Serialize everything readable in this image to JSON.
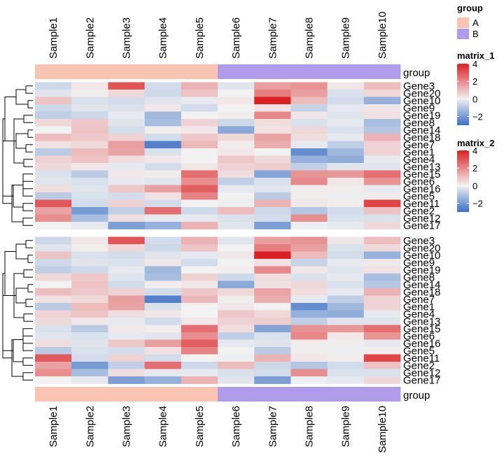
{
  "chart_data": {
    "type": "heatmap",
    "samples": [
      "Sample1",
      "Sample2",
      "Sample3",
      "Sample4",
      "Sample5",
      "Sample6",
      "Sample7",
      "Sample8",
      "Sample9",
      "Sample10"
    ],
    "groups": [
      "A",
      "A",
      "A",
      "A",
      "A",
      "B",
      "B",
      "B",
      "B",
      "B"
    ],
    "group_annotation_label": "group",
    "legends": {
      "group": {
        "title": "group",
        "levels": [
          "A",
          "B"
        ],
        "colors": {
          "A": "#F9C4B1",
          "B": "#B19CEB"
        }
      },
      "matrix_1": {
        "title": "matrix_1",
        "ticks": [
          4,
          2,
          0,
          -2
        ]
      },
      "matrix_2": {
        "title": "matrix_2",
        "ticks": [
          4,
          2,
          0,
          -2
        ]
      }
    },
    "color_scale": {
      "min": -3,
      "mid": 0,
      "max": 4,
      "low": "#3A6FC4",
      "mid_color": "#F2F2F2",
      "high": "#DC1F22"
    },
    "heatmaps": [
      {
        "name": "matrix_1",
        "genes": [
          "Gene3",
          "Gene20",
          "Gene10",
          "Gene9",
          "Gene19",
          "Gene8",
          "Gene14",
          "Gene18",
          "Gene7",
          "Gene1",
          "Gene4",
          "Gene13",
          "Gene15",
          "Gene6",
          "Gene16",
          "Gene5",
          "Gene11",
          "Gene2",
          "Gene12",
          "Gene17"
        ],
        "values": [
          [
            -0.6,
            0.2,
            3.0,
            -0.5,
            1.2,
            -0.3,
            1.6,
            1.8,
            0.2,
            1.0
          ],
          [
            -0.3,
            0.1,
            0.5,
            -0.6,
            0.9,
            0.0,
            2.2,
            1.6,
            -0.4,
            0.5
          ],
          [
            0.9,
            -0.4,
            -0.5,
            -0.3,
            -0.2,
            0.2,
            4.0,
            1.0,
            -0.5,
            -1.5
          ],
          [
            -0.6,
            -0.3,
            -0.4,
            0.2,
            -0.5,
            0.0,
            0.3,
            -0.7,
            -0.2,
            0.2
          ],
          [
            -0.8,
            -0.6,
            -0.2,
            -1.3,
            0.0,
            0.1,
            2.0,
            0.2,
            -0.3,
            0.3
          ],
          [
            0.5,
            0.8,
            -0.3,
            -1.2,
            0.6,
            -0.6,
            0.4,
            -0.4,
            -0.2,
            -1.2
          ],
          [
            0.0,
            0.9,
            -0.5,
            0.1,
            0.2,
            -1.7,
            0.3,
            0.5,
            -0.4,
            -1.0
          ],
          [
            1.0,
            0.8,
            0.6,
            -0.5,
            0.8,
            0.5,
            1.5,
            0.4,
            -0.2,
            1.2
          ],
          [
            0.3,
            0.5,
            1.6,
            -2.6,
            1.1,
            0.1,
            1.3,
            -0.2,
            -0.8,
            0.6
          ],
          [
            -0.9,
            1.0,
            1.5,
            -0.4,
            0.0,
            0.2,
            0.0,
            -2.3,
            -1.3,
            0.6
          ],
          [
            0.6,
            0.9,
            0.4,
            0.2,
            0.0,
            0.8,
            0.5,
            -1.5,
            -1.6,
            -0.2
          ],
          [
            0.5,
            0.2,
            -0.2,
            -0.5,
            0.2,
            0.6,
            0.7,
            -0.8,
            -0.3,
            -0.3
          ],
          [
            -0.4,
            -0.9,
            0.2,
            0.1,
            2.5,
            0.4,
            -1.8,
            1.8,
            1.7,
            2.5
          ],
          [
            -0.3,
            -0.4,
            -0.2,
            -0.3,
            1.9,
            -0.8,
            -0.4,
            2.0,
            0.2,
            1.8
          ],
          [
            0.4,
            -0.3,
            0.8,
            1.6,
            2.8,
            -0.2,
            -0.3,
            0.1,
            0.1,
            -0.2
          ],
          [
            -0.9,
            -0.4,
            -0.5,
            0.3,
            2.1,
            0.0,
            -0.9,
            0.1,
            -0.1,
            0.1
          ],
          [
            2.9,
            -0.5,
            0.6,
            -0.5,
            0.0,
            -0.1,
            1.2,
            0.2,
            0.1,
            3.3
          ],
          [
            1.5,
            -2.0,
            -0.8,
            2.5,
            -0.6,
            1.0,
            -0.6,
            -1.0,
            -0.5,
            0.9
          ],
          [
            1.9,
            -1.2,
            0.4,
            -0.2,
            -0.2,
            -0.4,
            -0.5,
            1.9,
            -0.4,
            -0.4
          ],
          [
            0.0,
            -0.2,
            -1.9,
            -1.5,
            1.2,
            -0.3,
            -1.9,
            -0.1,
            -0.2,
            0.5
          ]
        ]
      },
      {
        "name": "matrix_2",
        "genes": [
          "Gene3",
          "Gene20",
          "Gene10",
          "Gene9",
          "Gene19",
          "Gene8",
          "Gene14",
          "Gene18",
          "Gene7",
          "Gene1",
          "Gene4",
          "Gene13",
          "Gene15",
          "Gene6",
          "Gene16",
          "Gene5",
          "Gene11",
          "Gene2",
          "Gene12",
          "Gene17"
        ],
        "values": [
          [
            -0.6,
            0.2,
            3.0,
            -0.5,
            1.2,
            -0.3,
            1.6,
            1.8,
            0.2,
            1.0
          ],
          [
            -0.3,
            0.1,
            0.5,
            -0.6,
            0.9,
            0.0,
            2.2,
            1.6,
            -0.4,
            0.5
          ],
          [
            0.9,
            -0.4,
            -0.5,
            -0.3,
            -0.2,
            0.2,
            4.0,
            1.0,
            -0.5,
            -1.5
          ],
          [
            -0.6,
            -0.3,
            -0.4,
            0.2,
            -0.5,
            0.0,
            0.3,
            -0.7,
            -0.2,
            0.2
          ],
          [
            -0.8,
            -0.6,
            -0.2,
            -1.3,
            0.0,
            0.1,
            2.0,
            0.2,
            -0.3,
            0.3
          ],
          [
            0.5,
            0.8,
            -0.3,
            -1.2,
            0.6,
            -0.6,
            0.4,
            -0.4,
            -0.2,
            -1.2
          ],
          [
            0.0,
            0.9,
            -0.5,
            0.1,
            0.2,
            -1.7,
            0.3,
            0.5,
            -0.4,
            -1.0
          ],
          [
            1.0,
            0.8,
            0.6,
            -0.5,
            0.8,
            0.5,
            1.5,
            0.4,
            -0.2,
            1.2
          ],
          [
            0.3,
            0.5,
            1.6,
            -2.6,
            1.1,
            0.1,
            1.3,
            -0.2,
            -0.8,
            0.6
          ],
          [
            -0.9,
            1.0,
            1.5,
            -0.4,
            0.0,
            0.2,
            0.0,
            -2.3,
            -1.3,
            0.6
          ],
          [
            0.6,
            0.9,
            0.4,
            0.2,
            0.0,
            0.8,
            0.5,
            -1.5,
            -1.6,
            -0.2
          ],
          [
            0.5,
            0.2,
            -0.2,
            -0.5,
            0.2,
            0.6,
            0.7,
            -0.8,
            -0.3,
            -0.3
          ],
          [
            -0.4,
            -0.9,
            0.2,
            0.1,
            2.5,
            0.4,
            -1.8,
            1.8,
            1.7,
            2.5
          ],
          [
            -0.3,
            -0.4,
            -0.2,
            -0.3,
            1.9,
            -0.8,
            -0.4,
            2.0,
            0.2,
            1.8
          ],
          [
            0.4,
            -0.3,
            0.8,
            1.6,
            2.8,
            -0.2,
            -0.3,
            0.1,
            0.1,
            -0.2
          ],
          [
            -0.9,
            -0.4,
            -0.5,
            0.3,
            2.1,
            0.0,
            -0.9,
            0.1,
            -0.1,
            0.1
          ],
          [
            2.9,
            -0.5,
            0.6,
            -0.5,
            0.0,
            -0.1,
            1.2,
            0.2,
            0.1,
            3.3
          ],
          [
            1.5,
            -2.0,
            -0.8,
            2.5,
            -0.6,
            1.0,
            -0.6,
            -1.0,
            -0.5,
            0.9
          ],
          [
            1.9,
            -1.2,
            0.4,
            -0.2,
            -0.2,
            -0.4,
            -0.5,
            1.9,
            -0.4,
            -0.4
          ],
          [
            0.0,
            -0.2,
            -1.9,
            -1.5,
            1.2,
            -0.3,
            -1.9,
            -0.1,
            -0.2,
            0.5
          ]
        ]
      }
    ],
    "row_dendrogram": [
      [
        6,
        7
      ],
      [
        8,
        9
      ],
      [
        4,
        5
      ],
      [
        2,
        3
      ],
      [
        0,
        1
      ],
      [
        10,
        11
      ],
      [
        13,
        14
      ],
      [
        12,
        15
      ],
      [
        16,
        17
      ],
      [
        18,
        19
      ],
      [
        20,
        21
      ],
      [
        23,
        24
      ],
      [
        22,
        25
      ],
      [
        27,
        28
      ],
      [
        26,
        29
      ],
      [
        30,
        31
      ],
      [
        32,
        33
      ],
      [
        34,
        35
      ],
      [
        36,
        37
      ]
    ]
  }
}
